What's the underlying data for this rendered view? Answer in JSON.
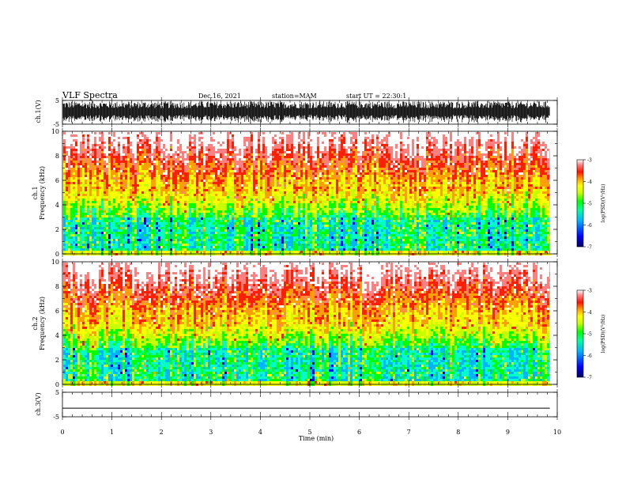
{
  "header": {
    "title": "VLF Spectra",
    "date": "Dec.16, 2021",
    "station": "station=MAM",
    "start": "start UT = 22:30:1"
  },
  "chart_data": [
    {
      "type": "line",
      "name": "ch1-waveform",
      "ylabel": "ch.1(V)",
      "ylim": [
        -5,
        5
      ],
      "yticks": [
        "5",
        "-5"
      ],
      "xlim": [
        0,
        10
      ],
      "description_visible": "dense black oscillating waveform over full range"
    },
    {
      "type": "heatmap",
      "name": "ch1-spectrogram",
      "ylabel": "ch.1\nFrequency (kHz)",
      "ylim": [
        0,
        10
      ],
      "yticks": [
        "0",
        "2",
        "4",
        "6",
        "8",
        "10"
      ],
      "xlim": [
        0,
        10
      ],
      "colorbar": {
        "label": "log(PSD)(V²/Hz)",
        "range": [
          -7,
          -3
        ],
        "ticks": [
          "-3",
          "-4",
          "-5",
          "-6",
          "-7"
        ]
      }
    },
    {
      "type": "heatmap",
      "name": "ch2-spectrogram",
      "ylabel": "ch.2\nFrequency (kHz)",
      "ylim": [
        0,
        10
      ],
      "yticks": [
        "0",
        "2",
        "4",
        "6",
        "8",
        "10"
      ],
      "xlim": [
        0,
        10
      ],
      "colorbar": {
        "label": "log(PSD)(V²/Hz)",
        "range": [
          -7,
          -3
        ],
        "ticks": [
          "-3",
          "-4",
          "-5",
          "-6",
          "-7"
        ]
      }
    },
    {
      "type": "line",
      "name": "ch3-waveform",
      "ylabel": "ch.3(V)",
      "ylim": [
        -5,
        5
      ],
      "yticks": [
        "5",
        "-5"
      ],
      "xlim": [
        0,
        10
      ],
      "x": [
        0,
        9.85
      ],
      "y": [
        -1.5,
        -1.5
      ]
    }
  ],
  "xaxis": {
    "label": "Time (min)",
    "ticks": [
      "0",
      "1",
      "2",
      "3",
      "4",
      "5",
      "6",
      "7",
      "8",
      "9",
      "10"
    ],
    "data_end": 9.85
  },
  "colors": {
    "scale": [
      "#000080",
      "#0000ff",
      "#00b4ff",
      "#00ffc8",
      "#00ff00",
      "#c8ff00",
      "#ffff00",
      "#ffa000",
      "#ff2000",
      "#ff8080",
      "#ffffff"
    ]
  }
}
